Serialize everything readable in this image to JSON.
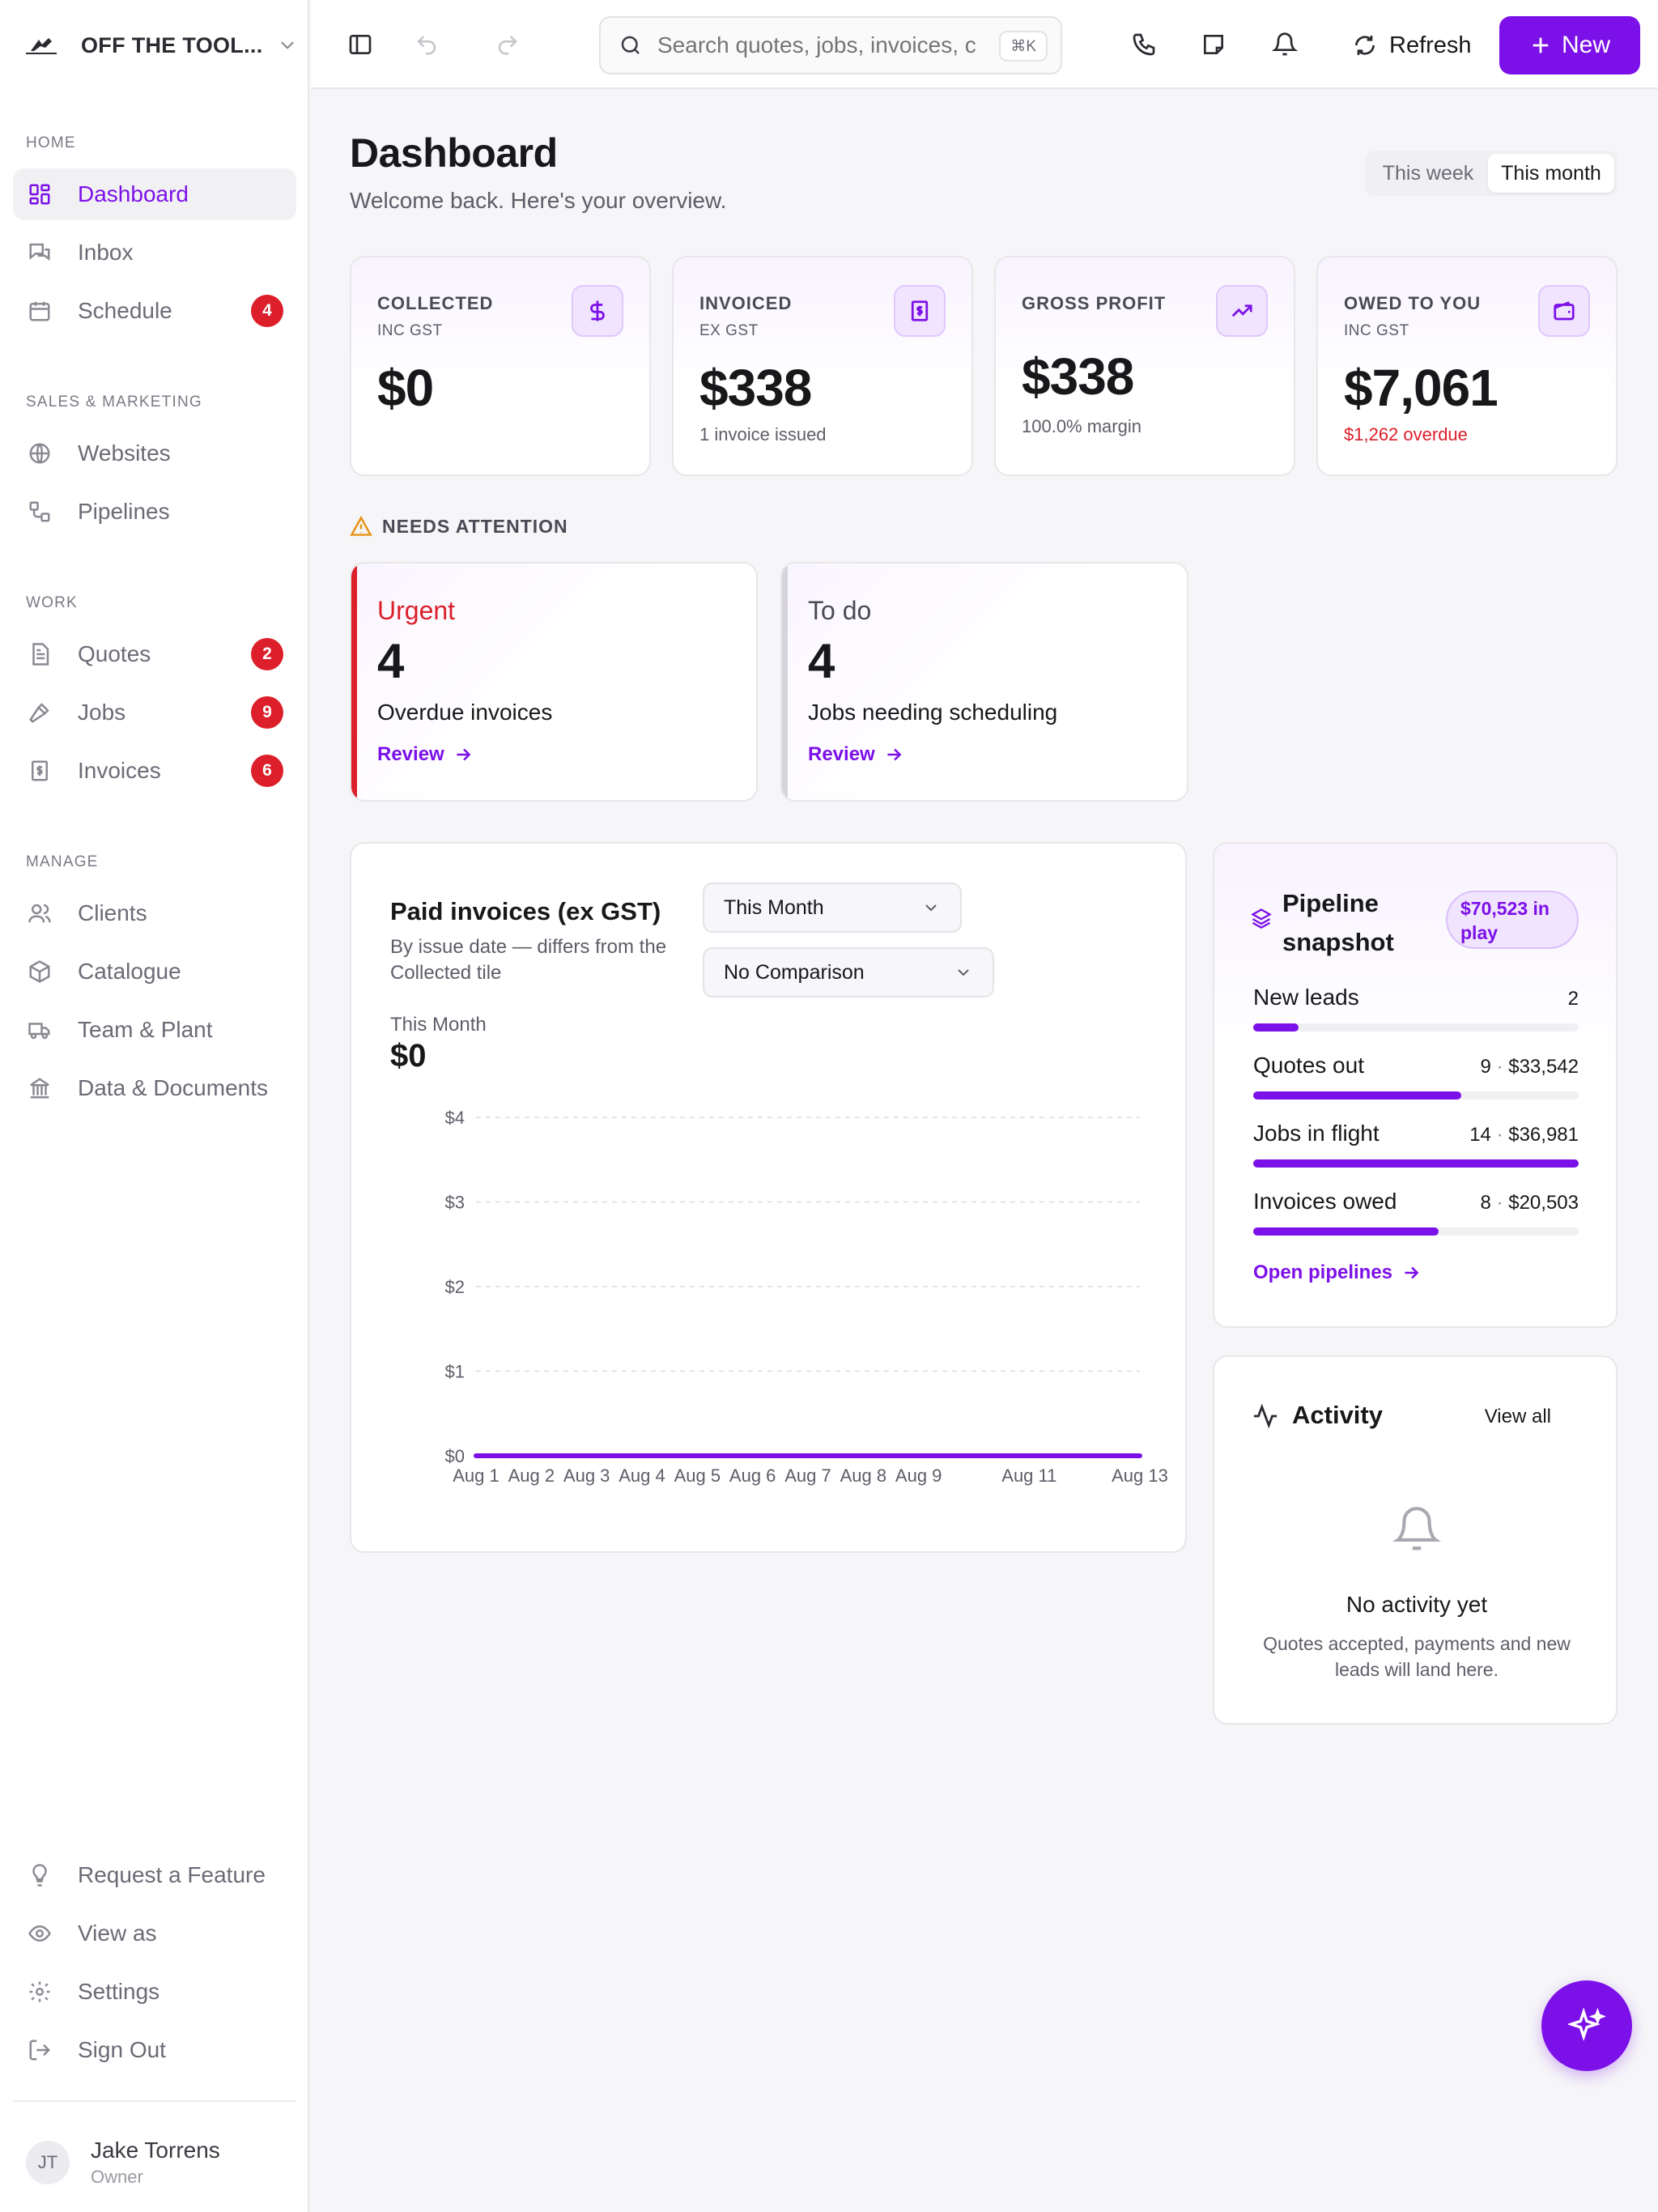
{
  "brand": {
    "name": "OFF THE TOOL..."
  },
  "sidebar": {
    "sections": [
      {
        "label": "HOME",
        "items": [
          {
            "label": "Dashboard",
            "icon": "layout-grid-icon",
            "active": true
          },
          {
            "label": "Inbox",
            "icon": "inbox-chat-icon"
          },
          {
            "label": "Schedule",
            "icon": "calendar-icon",
            "badge": "4"
          }
        ]
      },
      {
        "label": "SALES & MARKETING",
        "items": [
          {
            "label": "Websites",
            "icon": "globe-icon"
          },
          {
            "label": "Pipelines",
            "icon": "pipeline-icon"
          }
        ]
      },
      {
        "label": "WORK",
        "items": [
          {
            "label": "Quotes",
            "icon": "document-icon",
            "badge": "2"
          },
          {
            "label": "Jobs",
            "icon": "hammer-icon",
            "badge": "9"
          },
          {
            "label": "Invoices",
            "icon": "invoice-icon",
            "badge": "6"
          }
        ]
      },
      {
        "label": "MANAGE",
        "items": [
          {
            "label": "Clients",
            "icon": "users-icon"
          },
          {
            "label": "Catalogue",
            "icon": "box-icon"
          },
          {
            "label": "Team & Plant",
            "icon": "truck-icon"
          },
          {
            "label": "Data & Documents",
            "icon": "bank-icon"
          }
        ]
      }
    ],
    "footer_items": [
      {
        "label": "Request a Feature",
        "icon": "lightbulb-icon"
      },
      {
        "label": "View as",
        "icon": "eye-icon"
      },
      {
        "label": "Settings",
        "icon": "gear-icon"
      },
      {
        "label": "Sign Out",
        "icon": "sign-out-icon"
      }
    ],
    "user": {
      "initials": "JT",
      "name": "Jake Torrens",
      "role": "Owner"
    }
  },
  "topbar": {
    "search_placeholder": "Search quotes, jobs, invoices, c",
    "search_shortcut": "⌘K",
    "refresh_label": "Refresh",
    "new_label": "New"
  },
  "header": {
    "title": "Dashboard",
    "subtitle": "Welcome back. Here's your overview.",
    "range_options": [
      "This week",
      "This month"
    ],
    "range_selected": "This month"
  },
  "stats": [
    {
      "title": "COLLECTED",
      "sub": "INC GST",
      "value": "$0",
      "note": "",
      "icon": "dollar-icon"
    },
    {
      "title": "INVOICED",
      "sub": "EX GST",
      "value": "$338",
      "note": "1 invoice issued",
      "icon": "receipt-icon"
    },
    {
      "title": "GROSS PROFIT",
      "sub": "",
      "value": "$338",
      "note": "100.0% margin",
      "icon": "trending-up-icon"
    },
    {
      "title": "OWED TO YOU",
      "sub": "INC GST",
      "value": "$7,061",
      "note": "$1,262 overdue",
      "icon": "wallet-icon"
    }
  ],
  "attention": {
    "heading": "NEEDS ATTENTION",
    "cards": [
      {
        "kind": "Urgent",
        "count": "4",
        "desc": "Overdue invoices",
        "action": "Review",
        "color": "#dc1f2a"
      },
      {
        "kind": "To do",
        "count": "4",
        "desc": "Jobs needing scheduling",
        "action": "Review",
        "color": "#d4d4da"
      }
    ]
  },
  "paid": {
    "title": "Paid invoices (ex GST)",
    "subtitle": "By issue date — differs from the Collected tile",
    "period_select": "This Month",
    "comparison_select": "No Comparison",
    "summary_label": "This Month",
    "summary_value": "$0"
  },
  "chart_data": {
    "type": "line",
    "x": [
      "Aug 1",
      "Aug 2",
      "Aug 3",
      "Aug 4",
      "Aug 5",
      "Aug 6",
      "Aug 7",
      "Aug 8",
      "Aug 9",
      "Aug 10",
      "Aug 11",
      "Aug 12",
      "Aug 13"
    ],
    "x_tick_labels": [
      "Aug 1",
      "Aug 2",
      "Aug 3",
      "Aug 4",
      "Aug 5",
      "Aug 6",
      "Aug 7",
      "Aug 8",
      "Aug 9",
      "Aug 11",
      "Aug 13"
    ],
    "series": [
      {
        "values": [
          0,
          0,
          0,
          0,
          0,
          0,
          0,
          0,
          0,
          0,
          0,
          0,
          0
        ],
        "color": "#7c10e8"
      }
    ],
    "y_ticks": [
      "$0",
      "$1",
      "$2",
      "$3",
      "$4"
    ],
    "ylim": [
      0,
      4
    ],
    "grid": true
  },
  "pipeline": {
    "title": "Pipeline snapshot",
    "pill": "$70,523 in play",
    "rows": [
      {
        "label": "New leads",
        "count": "2",
        "amount": "",
        "fill": 0.14
      },
      {
        "label": "Quotes out",
        "count": "9",
        "amount": "$33,542",
        "fill": 0.64
      },
      {
        "label": "Jobs in flight",
        "count": "14",
        "amount": "$36,981",
        "fill": 1.0
      },
      {
        "label": "Invoices owed",
        "count": "8",
        "amount": "$20,503",
        "fill": 0.57
      }
    ],
    "link": "Open pipelines"
  },
  "activity": {
    "title": "Activity",
    "view_all": "View all",
    "empty_title": "No activity yet",
    "empty_desc": "Quotes accepted, payments and new leads will land here."
  },
  "colors": {
    "accent": "#7c10e8",
    "danger": "#dc1f2a"
  }
}
